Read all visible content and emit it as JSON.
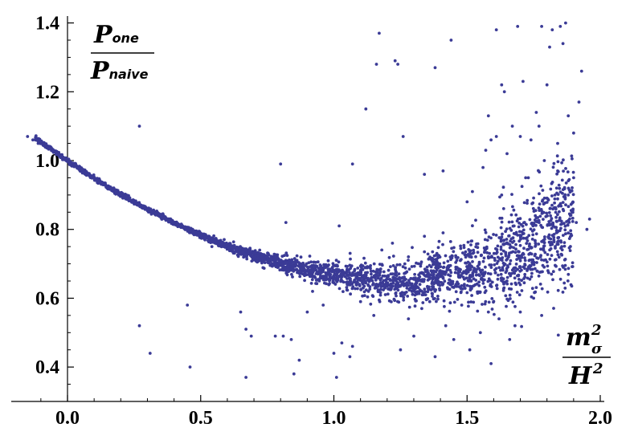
{
  "chart_data": {
    "type": "scatter",
    "title": "",
    "x_ticks": [
      "0.0",
      "0.5",
      "1.0",
      "1.5",
      "2.0"
    ],
    "y_ticks": [
      "0.4",
      "0.6",
      "0.8",
      "1.0",
      "1.2",
      "1.4"
    ],
    "xlim": [
      -0.2,
      2.05
    ],
    "ylim": [
      0.3,
      1.42
    ],
    "xlabel": {
      "base": "m",
      "sup": "2",
      "sub": "σ",
      "denominator": "H",
      "denominator_sup": "2"
    },
    "ylabel": {
      "numerator": "P",
      "numerator_sub": "one",
      "denominator": "P",
      "denominator_sub": "naive"
    },
    "point_color": "#3b3b96",
    "series": [
      {
        "points": [
          [
            -0.15,
            1.07
          ],
          [
            -0.13,
            1.06
          ],
          [
            -0.11,
            1.05
          ],
          [
            0.27,
            1.1
          ],
          [
            0.27,
            0.52
          ],
          [
            0.31,
            0.44
          ],
          [
            0.45,
            0.58
          ],
          [
            0.46,
            0.4
          ],
          [
            0.65,
            0.56
          ],
          [
            0.67,
            0.51
          ],
          [
            0.67,
            0.37
          ],
          [
            0.69,
            0.49
          ],
          [
            0.78,
            0.49
          ],
          [
            0.8,
            0.99
          ],
          [
            0.81,
            0.49
          ],
          [
            0.82,
            0.82
          ],
          [
            0.84,
            0.48
          ],
          [
            0.85,
            0.38
          ],
          [
            0.87,
            0.42
          ],
          [
            0.92,
            0.62
          ],
          [
            0.96,
            0.58
          ],
          [
            1.0,
            0.44
          ],
          [
            1.01,
            0.37
          ],
          [
            1.03,
            0.47
          ],
          [
            1.06,
            0.43
          ],
          [
            1.07,
            0.46
          ],
          [
            1.02,
            0.81
          ],
          [
            1.07,
            0.99
          ],
          [
            1.1,
            0.59
          ],
          [
            1.12,
            1.15
          ],
          [
            1.13,
            0.62
          ],
          [
            1.15,
            0.55
          ],
          [
            1.17,
            1.37
          ],
          [
            1.16,
            1.28
          ],
          [
            1.23,
            1.29
          ],
          [
            1.24,
            1.28
          ],
          [
            1.25,
            0.45
          ],
          [
            1.26,
            1.07
          ],
          [
            1.3,
            0.49
          ],
          [
            1.33,
            0.57
          ],
          [
            1.34,
            0.96
          ],
          [
            1.38,
            1.27
          ],
          [
            1.38,
            0.43
          ],
          [
            1.41,
            0.97
          ],
          [
            1.44,
            1.35
          ],
          [
            1.45,
            0.48
          ],
          [
            1.51,
            0.45
          ],
          [
            1.56,
            0.98
          ],
          [
            1.57,
            1.03
          ],
          [
            1.58,
            1.13
          ],
          [
            1.59,
            1.06
          ],
          [
            1.59,
            0.41
          ],
          [
            1.61,
            1.38
          ],
          [
            1.61,
            1.07
          ],
          [
            1.63,
            1.22
          ],
          [
            1.64,
            1.2
          ],
          [
            1.67,
            1.1
          ],
          [
            1.69,
            1.39
          ],
          [
            1.7,
            1.07
          ],
          [
            1.71,
            1.23
          ],
          [
            1.73,
            0.95
          ],
          [
            1.74,
            1.06
          ],
          [
            1.76,
            1.14
          ],
          [
            1.78,
            1.39
          ],
          [
            1.79,
            1.0
          ],
          [
            1.8,
            1.22
          ],
          [
            1.81,
            1.33
          ],
          [
            1.82,
            1.38
          ],
          [
            1.83,
            0.9
          ],
          [
            1.84,
            1.05
          ],
          [
            1.85,
            1.39
          ],
          [
            1.86,
            1.34
          ],
          [
            1.87,
            1.4
          ],
          [
            1.88,
            0.9
          ],
          [
            1.9,
            1.08
          ],
          [
            1.91,
            0.82
          ],
          [
            1.92,
            1.17
          ],
          [
            1.93,
            1.26
          ],
          [
            1.95,
            0.8
          ],
          [
            1.96,
            0.83
          ],
          [
            1.88,
            1.13
          ],
          [
            1.77,
            1.1
          ],
          [
            1.65,
            1.02
          ],
          [
            1.52,
            0.91
          ],
          [
            1.5,
            0.88
          ],
          [
            1.41,
            0.79
          ],
          [
            1.34,
            0.78
          ],
          [
            1.22,
            0.76
          ],
          [
            1.18,
            0.74
          ],
          [
            1.63,
            0.9
          ],
          [
            1.72,
            0.95
          ],
          [
            1.84,
            0.97
          ],
          [
            1.9,
            0.95
          ],
          [
            1.68,
            0.52
          ],
          [
            1.62,
            0.54
          ],
          [
            1.75,
            0.6
          ],
          [
            1.7,
            0.56
          ],
          [
            1.58,
            0.56
          ],
          [
            1.48,
            0.58
          ],
          [
            1.36,
            0.59
          ],
          [
            1.19,
            0.63
          ],
          [
            1.05,
            0.64
          ],
          [
            0.93,
            0.66
          ],
          [
            0.75,
            0.71
          ],
          [
            0.9,
            0.56
          ],
          [
            1.28,
            0.54
          ],
          [
            1.42,
            0.52
          ],
          [
            1.55,
            0.5
          ],
          [
            1.66,
            0.48
          ],
          [
            1.78,
            0.55
          ]
        ]
      }
    ]
  }
}
